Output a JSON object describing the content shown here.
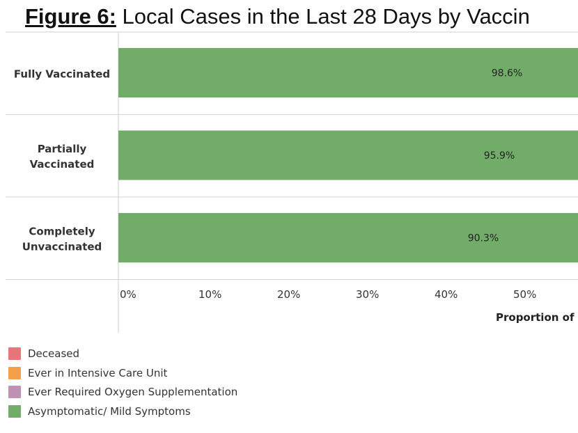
{
  "title": {
    "prefix": "Figure 6:",
    "text": " Local Cases in the Last 28 Days by Vaccin"
  },
  "chart_data": {
    "type": "bar",
    "orientation": "horizontal",
    "categories": [
      [
        "Fully Vaccinated"
      ],
      [
        "Partially",
        "Vaccinated"
      ],
      [
        "Completely",
        "Unvaccinated"
      ]
    ],
    "series": [
      {
        "name": "Asymptomatic/ Mild Symptoms",
        "color": "#71ad68",
        "values": [
          98.6,
          95.9,
          90.3
        ],
        "labels": [
          "98.6%",
          "95.9%",
          "90.3%"
        ]
      }
    ],
    "x_ticks": [
      {
        "value": 0,
        "label": "0%"
      },
      {
        "value": 10,
        "label": "10%"
      },
      {
        "value": 20,
        "label": "20%"
      },
      {
        "value": 30,
        "label": "30%"
      },
      {
        "value": 40,
        "label": "40%"
      },
      {
        "value": 50,
        "label": "50%"
      }
    ],
    "xlim": [
      0,
      100
    ],
    "xlabel": "Proportion of C"
  },
  "legend": [
    {
      "label": "Deceased",
      "color": "#e8757a"
    },
    {
      "label": "Ever in Intensive Care Unit",
      "color": "#f4a04a"
    },
    {
      "label": "Ever Required Oxygen Supplementation",
      "color": "#bf91b3"
    },
    {
      "label": "Asymptomatic/ Mild Symptoms",
      "color": "#71ad68"
    }
  ]
}
